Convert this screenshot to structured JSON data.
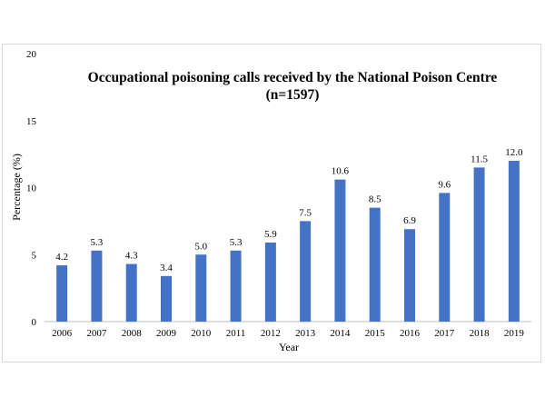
{
  "chart_data": {
    "type": "bar",
    "title": "Occupational poisoning calls received by the National Poison Centre",
    "subtitle": "(n=1597)",
    "xlabel": "Year",
    "ylabel": "Percentage (%)",
    "categories": [
      "2006",
      "2007",
      "2008",
      "2009",
      "2010",
      "2011",
      "2012",
      "2013",
      "2014",
      "2015",
      "2016",
      "2017",
      "2018",
      "2019"
    ],
    "values": [
      4.2,
      5.3,
      4.3,
      3.4,
      5.0,
      5.3,
      5.9,
      7.5,
      10.6,
      8.5,
      6.9,
      9.6,
      11.5,
      12.0
    ],
    "value_labels": [
      "4.2",
      "5.3",
      "4.3",
      "3.4",
      "5.0",
      "5.3",
      "5.9",
      "7.5",
      "10.6",
      "8.5",
      "6.9",
      "9.6",
      "11.5",
      "12.0"
    ],
    "ylim": [
      0,
      20
    ],
    "yticks": [
      "0",
      "5",
      "10",
      "15",
      "20"
    ],
    "grid": false,
    "bar_color": "#4472c4"
  }
}
